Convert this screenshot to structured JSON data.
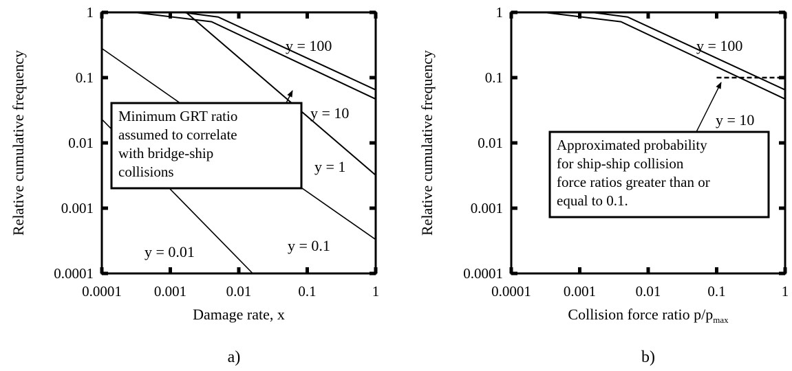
{
  "chart_data": [
    {
      "type": "line",
      "panel_label": "a)",
      "xlabel": "Damage rate, x",
      "ylabel": "Relative cumulative frequency",
      "xscale": "log",
      "yscale": "log",
      "xlim": [
        0.0001,
        1
      ],
      "ylim": [
        0.0001,
        1
      ],
      "x_ticks": [
        "0.0001",
        "0.001",
        "0.01",
        "0.1",
        "1"
      ],
      "y_ticks": [
        "0.0001",
        "0.001",
        "0.01",
        "0.1",
        "1"
      ],
      "series": [
        {
          "name": "y = 100",
          "points": [
            [
              0.0015,
              1
            ],
            [
              0.005,
              0.85
            ],
            [
              1,
              0.065
            ]
          ]
        },
        {
          "name": "y = 10",
          "points": [
            [
              0.0003,
              1
            ],
            [
              0.004,
              0.72
            ],
            [
              1,
              0.047
            ]
          ]
        },
        {
          "name": "y = 1",
          "points": [
            [
              0.0017,
              1
            ],
            [
              1,
              0.0032
            ]
          ]
        },
        {
          "name": "y = 0.1",
          "points": [
            [
              0.0001,
              0.28
            ],
            [
              1,
              0.00033
            ]
          ]
        },
        {
          "name": "y = 0.01",
          "points": [
            [
              0.0001,
              0.023
            ],
            [
              0.016,
              0.0001
            ]
          ]
        }
      ],
      "annotation": {
        "text": [
          "Minimum GRT ratio",
          "assumed to correlate",
          "with bridge-ship",
          "collisions"
        ],
        "arrow_to": [
          0.1,
          0.12
        ]
      }
    },
    {
      "type": "line",
      "panel_label": "b)",
      "xlabel": "Collision force ratio p/p",
      "xlabel_sub": "max",
      "ylabel": "Relative cumulative frequency",
      "xscale": "log",
      "yscale": "log",
      "xlim": [
        0.0001,
        1
      ],
      "ylim": [
        0.0001,
        1
      ],
      "x_ticks": [
        "0.0001",
        "0.001",
        "0.01",
        "0.1",
        "1"
      ],
      "y_ticks": [
        "0.0001",
        "0.001",
        "0.01",
        "0.1",
        "1"
      ],
      "series": [
        {
          "name": "y = 100",
          "points": [
            [
              0.0015,
              1
            ],
            [
              0.005,
              0.85
            ],
            [
              1,
              0.065
            ]
          ]
        },
        {
          "name": "y = 10",
          "points": [
            [
              0.0003,
              1
            ],
            [
              0.004,
              0.72
            ],
            [
              1,
              0.047
            ]
          ]
        }
      ],
      "reference_line": {
        "y": 0.1,
        "x_from": 0.1,
        "x_to": 1,
        "style": "dashed"
      },
      "annotation": {
        "text": [
          "Approximated probability",
          "for ship-ship collision",
          "force ratios greater than or",
          "equal to 0.1."
        ],
        "arrow_to": [
          0.1,
          0.1
        ]
      }
    }
  ]
}
